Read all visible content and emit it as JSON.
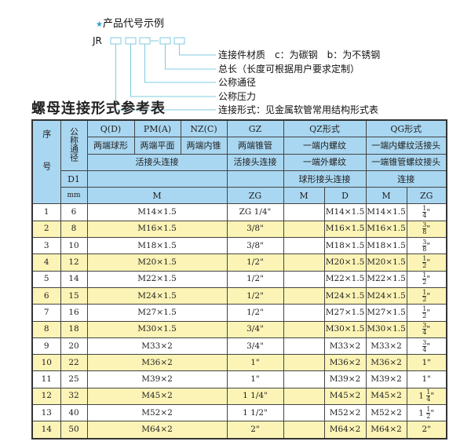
{
  "diagram": {
    "heading": "产品代号示例",
    "star_icon": "star-icon",
    "code_prefix": "JR",
    "labels": [
      "连接件材质　c：为碳钢　b：为不锈钢",
      "总长（长度可根据用户要求定制）",
      "公称通径",
      "公称压力",
      "连接形式：见金属软管常用结构形式表"
    ],
    "line_color": "#7fcbe0"
  },
  "table_title": "螺母连接形式参考表",
  "header": {
    "seq": "序号",
    "nominal": "公称通径",
    "r1": [
      "Q(D)",
      "PM(A)",
      "NZ(C)",
      "GZ",
      "QZ形式",
      "QG形式"
    ],
    "r2": [
      "两端球形",
      "两端平面",
      "两端内锥",
      "两端锥管",
      "一端内螺纹",
      "一端内螺纹活接头"
    ],
    "r3": [
      "活接头连接",
      "活接头连接",
      "一端外螺纹",
      "一端锥管螺纹接头"
    ],
    "r4": [
      "D1",
      "",
      "",
      "球形接头连接",
      "连接"
    ],
    "r5": [
      "mm",
      "M",
      "ZG",
      "M",
      "D",
      "M",
      "ZG"
    ]
  },
  "rows": [
    {
      "n": "1",
      "d": "6",
      "m": "M14×1.5",
      "zg": "ZG 1/4\""
    },
    {
      "n": "2",
      "d": "8",
      "m": "M16×1.5",
      "zg": "3/8\""
    },
    {
      "n": "3",
      "d": "10",
      "m": "M18×1.5",
      "zg": "3/8\""
    },
    {
      "n": "4",
      "d": "12",
      "m": "M20×1.5",
      "zg": "1/2\""
    },
    {
      "n": "5",
      "d": "14",
      "m": "M22×1.5",
      "zg": "1/2\""
    },
    {
      "n": "6",
      "d": "15",
      "m": "M24×1.5",
      "zg": "1/2\""
    },
    {
      "n": "7",
      "d": "16",
      "m": "M27×1.5",
      "zg": "1/2\""
    },
    {
      "n": "8",
      "d": "18",
      "m": "M30×1.5",
      "zg": "3/4\""
    },
    {
      "n": "9",
      "d": "20",
      "m": "M33×2",
      "zg": "3/4\""
    },
    {
      "n": "10",
      "d": "22",
      "m": "M36×2",
      "zg": "1\""
    },
    {
      "n": "11",
      "d": "25",
      "m": "M39×2",
      "zg": "1\""
    },
    {
      "n": "12",
      "d": "32",
      "m": "M45×2",
      "zg": "1 1/4\""
    },
    {
      "n": "13",
      "d": "40",
      "m": "M52×2",
      "zg": "1 1/2\""
    },
    {
      "n": "14",
      "d": "50",
      "m": "M64×2",
      "zg": "2\""
    }
  ],
  "colors": {
    "header_bg": "#a9d7f1",
    "stripe": "#fcf4b6"
  }
}
